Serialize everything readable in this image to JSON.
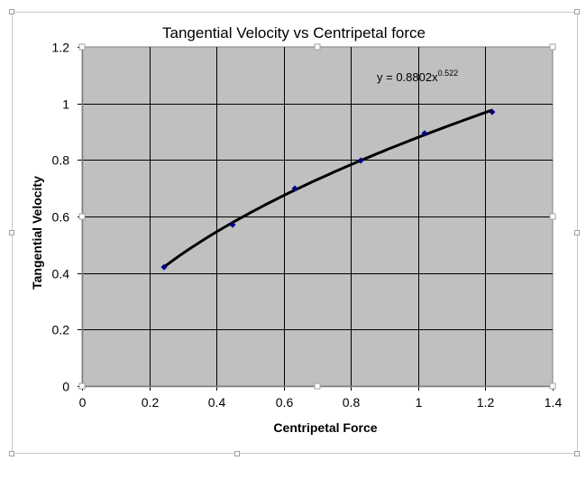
{
  "chart_data": {
    "type": "scatter",
    "title": "Tangential Velocity vs Centripetal force",
    "xlabel": "Centripetal Force",
    "ylabel": "Tangential Velocity",
    "xlim": [
      0,
      1.4
    ],
    "ylim": [
      0,
      1.2
    ],
    "x_ticks": [
      "0",
      "0.2",
      "0.4",
      "0.6",
      "0.8",
      "1",
      "1.2",
      "1.4"
    ],
    "y_ticks": [
      "0",
      "0.2",
      "0.4",
      "0.6",
      "0.8",
      "1",
      "1.2"
    ],
    "grid": true,
    "legend": "none",
    "plot_background": "#c0c0c0",
    "series": [
      {
        "name": "Tangential Velocity",
        "marker": "diamond",
        "color": "#000080",
        "x": [
          0.244,
          0.448,
          0.633,
          0.829,
          1.019,
          1.22
        ],
        "y": [
          0.421,
          0.571,
          0.699,
          0.798,
          0.894,
          0.97
        ]
      }
    ],
    "trendline": {
      "type": "power",
      "coefficient": 0.8802,
      "exponent": 0.522,
      "color": "#000000",
      "x_range": [
        0.244,
        1.22
      ]
    },
    "annotations": [
      {
        "text": "y = 0.8802x",
        "superscript": "0.522",
        "x": 0.88,
        "y": 1.09
      }
    ]
  }
}
